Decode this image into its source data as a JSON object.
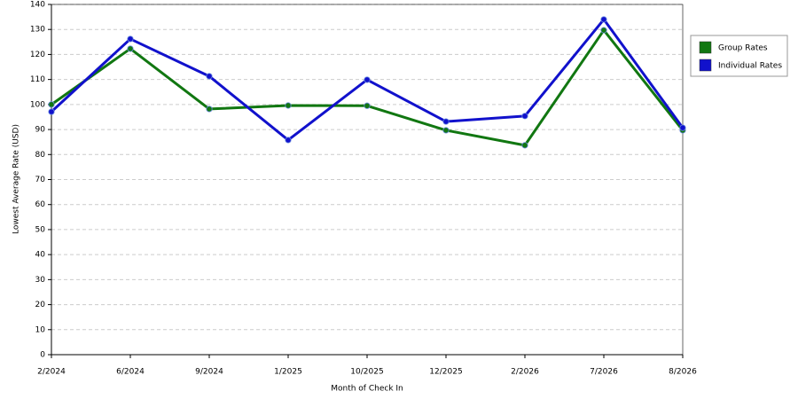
{
  "chart_data": {
    "type": "line",
    "x_label": "Month of Check In",
    "y_label": "Lowest Average Rate (USD)",
    "categories": [
      "2/2024",
      "6/2024",
      "9/2024",
      "1/2025",
      "10/2025",
      "12/2025",
      "2/2026",
      "7/2026",
      "8/2026"
    ],
    "series": [
      {
        "name": "Group Rates",
        "color": "#117711",
        "values": [
          100,
          122.3,
          98.2,
          99.6,
          99.5,
          89.7,
          83.7,
          129.7,
          89.7
        ]
      },
      {
        "name": "Individual Rates",
        "color": "#1111cc",
        "values": [
          97.1,
          126.2,
          111.3,
          85.8,
          109.9,
          93.2,
          95.4,
          134,
          90.7
        ]
      }
    ],
    "ylim": [
      0,
      140
    ],
    "yticks": [
      0,
      10,
      20,
      30,
      40,
      50,
      60,
      70,
      80,
      90,
      100,
      110,
      120,
      130,
      140
    ],
    "grid": true,
    "legend": "right"
  }
}
